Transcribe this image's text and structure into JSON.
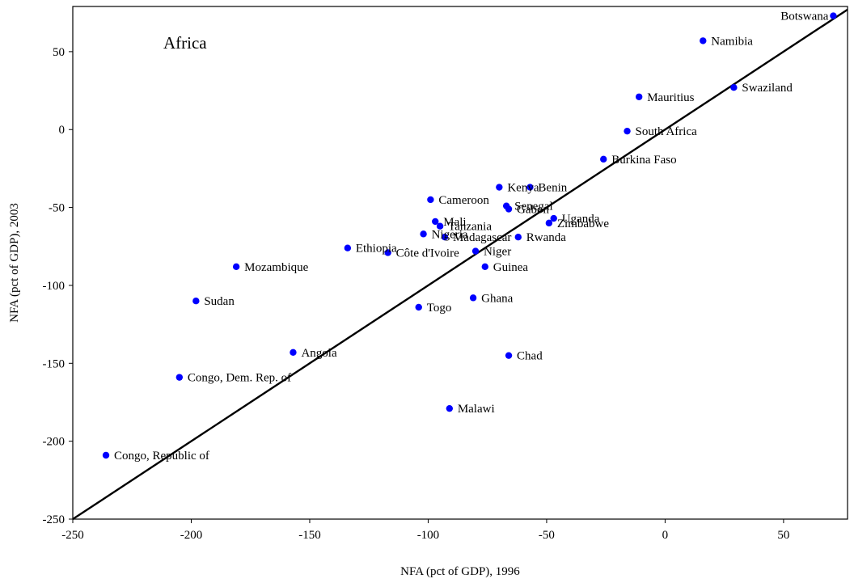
{
  "chart_data": {
    "type": "scatter",
    "annotation": "Africa",
    "xlabel": "NFA (pct of GDP), 1996",
    "ylabel": "NFA (pct of GDP), 2003",
    "xlim": [
      -250,
      77
    ],
    "ylim": [
      -250,
      79
    ],
    "xticks": [
      -250,
      -200,
      -150,
      -100,
      -50,
      0,
      50
    ],
    "yticks": [
      -250,
      -200,
      -150,
      -100,
      -50,
      0,
      50
    ],
    "grid": false,
    "point_color": "#0000ff",
    "line": {
      "type": "45-degree",
      "from": [
        -250,
        -250
      ],
      "to": [
        77,
        77
      ],
      "color": "#000000"
    },
    "points": [
      {
        "label": "Botswana",
        "x": 71,
        "y": 73
      },
      {
        "label": "Namibia",
        "x": 16,
        "y": 57
      },
      {
        "label": "Swaziland",
        "x": 29,
        "y": 27
      },
      {
        "label": "Mauritius",
        "x": -11,
        "y": 21
      },
      {
        "label": "South Africa",
        "x": -16,
        "y": -1
      },
      {
        "label": "Burkina Faso",
        "x": -26,
        "y": -19
      },
      {
        "label": "Kenya",
        "x": -70,
        "y": -37
      },
      {
        "label": "Benin",
        "x": -57,
        "y": -37
      },
      {
        "label": "Cameroon",
        "x": -99,
        "y": -45
      },
      {
        "label": "Senegal",
        "x": -67,
        "y": -49
      },
      {
        "label": "Gabon",
        "x": -66,
        "y": -51
      },
      {
        "label": "Uganda",
        "x": -47,
        "y": -57
      },
      {
        "label": "Zimbabwe",
        "x": -49,
        "y": -60
      },
      {
        "label": "Mali",
        "x": -97,
        "y": -59
      },
      {
        "label": "Nigeria",
        "x": -102,
        "y": -67
      },
      {
        "label": "Tanzania",
        "x": -95,
        "y": -62
      },
      {
        "label": "Madagascar",
        "x": -93,
        "y": -69
      },
      {
        "label": "Rwanda",
        "x": -62,
        "y": -69
      },
      {
        "label": "Ethiopia",
        "x": -134,
        "y": -76
      },
      {
        "label": "Côte d'Ivoire",
        "x": -117,
        "y": -79
      },
      {
        "label": "Niger",
        "x": -80,
        "y": -78
      },
      {
        "label": "Guinea",
        "x": -76,
        "y": -88
      },
      {
        "label": "Mozambique",
        "x": -181,
        "y": -88
      },
      {
        "label": "Sudan",
        "x": -198,
        "y": -110
      },
      {
        "label": "Togo",
        "x": -104,
        "y": -114
      },
      {
        "label": "Ghana",
        "x": -81,
        "y": -108
      },
      {
        "label": "Angola",
        "x": -157,
        "y": -143
      },
      {
        "label": "Chad",
        "x": -66,
        "y": -145
      },
      {
        "label": "Congo, Dem. Rep. of",
        "x": -205,
        "y": -159
      },
      {
        "label": "Malawi",
        "x": -91,
        "y": -179
      },
      {
        "label": "Congo, Republic of",
        "x": -236,
        "y": -209
      }
    ]
  }
}
